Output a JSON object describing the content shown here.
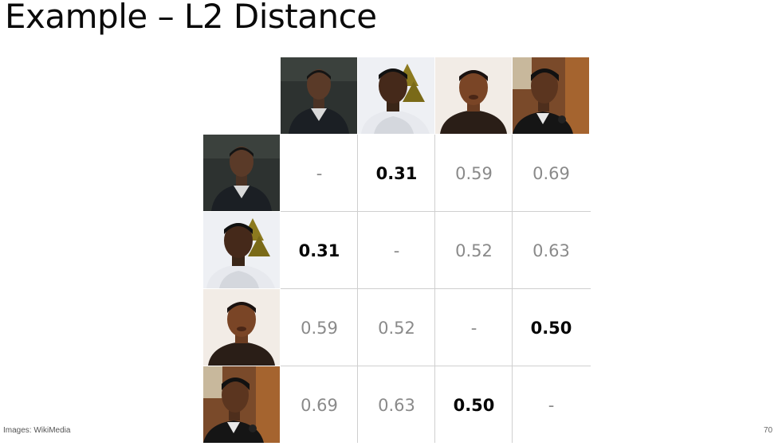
{
  "title": "Example – L2 Distance",
  "photos": {
    "col": [
      "portrait-a-icon",
      "portrait-b-icon",
      "portrait-c-icon",
      "portrait-d-icon"
    ],
    "row": [
      "portrait-a-icon",
      "portrait-b-icon",
      "portrait-c-icon",
      "portrait-d-icon"
    ]
  },
  "matrix": [
    [
      {
        "v": "-",
        "bold": false
      },
      {
        "v": "0.31",
        "bold": true
      },
      {
        "v": "0.59",
        "bold": false
      },
      {
        "v": "0.69",
        "bold": false
      }
    ],
    [
      {
        "v": "0.31",
        "bold": true
      },
      {
        "v": "-",
        "bold": false
      },
      {
        "v": "0.52",
        "bold": false
      },
      {
        "v": "0.63",
        "bold": false
      }
    ],
    [
      {
        "v": "0.59",
        "bold": false
      },
      {
        "v": "0.52",
        "bold": false
      },
      {
        "v": "-",
        "bold": false
      },
      {
        "v": "0.50",
        "bold": true
      }
    ],
    [
      {
        "v": "0.69",
        "bold": false
      },
      {
        "v": "0.63",
        "bold": false
      },
      {
        "v": "0.50",
        "bold": true
      },
      {
        "v": "-",
        "bold": false
      }
    ]
  ],
  "footer": {
    "credit": "Images: WikiMedia",
    "page": "70"
  },
  "colors": {
    "text_bold": "#050505",
    "text_muted": "#8a8a8a",
    "grid_line": "#cfcfcf"
  }
}
